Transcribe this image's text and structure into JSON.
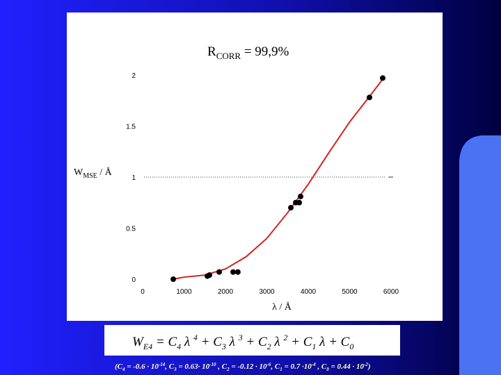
{
  "chart_data": {
    "type": "scatter",
    "title": [
      "R",
      "CORR",
      " = 99,9%"
    ],
    "y_label": [
      "W",
      "MSE",
      " / Å"
    ],
    "x_label": "λ / Å",
    "xlim": [
      0,
      6000
    ],
    "xticks": [
      0,
      1000,
      2000,
      3000,
      4000,
      5000,
      6000
    ],
    "ylim": [
      0,
      2
    ],
    "yticks": [
      0,
      0.5,
      1,
      1.5,
      2
    ],
    "reference_line": 1,
    "points": {
      "color": "#000000",
      "x": [
        740,
        1563,
        1613,
        1849,
        2185,
        2300,
        3580,
        3697,
        3782,
        3815,
        5479,
        5798
      ],
      "y": [
        0.0,
        0.03,
        0.04,
        0.07,
        0.07,
        0.07,
        0.7,
        0.75,
        0.75,
        0.81,
        1.78,
        1.97
      ]
    },
    "fit": {
      "color": "#d42020",
      "x": [
        740,
        1000,
        1500,
        2000,
        2500,
        3000,
        3500,
        4000,
        4500,
        5000,
        5500,
        5800
      ],
      "y": [
        0.0,
        0.02,
        0.04,
        0.1,
        0.22,
        0.4,
        0.65,
        0.93,
        1.24,
        1.54,
        1.8,
        1.96
      ]
    }
  },
  "formula": [
    "W",
    "E4",
    " =  C",
    "4",
    " λ ",
    "4",
    " + C",
    "3",
    " λ ",
    "3",
    " + C",
    "2",
    " λ ",
    "2",
    " + C",
    "1",
    " λ + C",
    "0"
  ],
  "coefficients": [
    "(C",
    "4",
    " = -0.6 · 10",
    "-14",
    ", C",
    "3",
    " = 0.63· 10",
    "-10",
    " , C",
    "2",
    " = -0.12 · 10",
    "-6",
    ", C",
    "1",
    " = 0.7 ·10",
    "-4",
    " , C",
    "0",
    " = 0.44 · 10",
    "-2",
    ")"
  ]
}
